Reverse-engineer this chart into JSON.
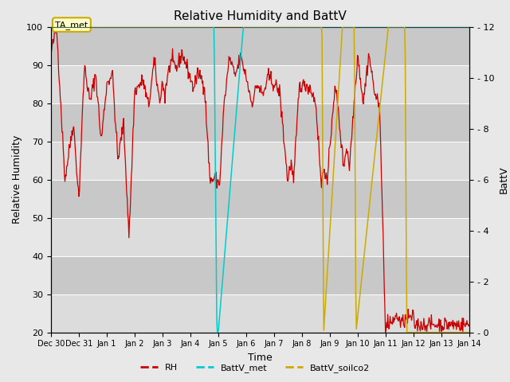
{
  "title": "Relative Humidity and BattV",
  "xlabel": "Time",
  "ylabel_left": "Relative Humidity",
  "ylabel_right": "BattV",
  "ylim_left": [
    20,
    100
  ],
  "ylim_right": [
    0,
    12
  ],
  "fig_bg_color": "#e8e8e8",
  "plot_bg_color": "#d4d4d4",
  "rh_color": "#cc0000",
  "battv_met_color": "#00cccc",
  "battv_soilco2_color": "#ccaa00",
  "annotation_text": "TA_met",
  "annotation_edge_color": "#ccaa00",
  "annotation_bg": "#ffffcc",
  "legend_labels": [
    "RH",
    "BattV_met",
    "BattV_soilco2"
  ],
  "xtick_labels": [
    "Dec 30",
    "Dec 31",
    "Jan 1",
    "Jan 2",
    "Jan 3",
    "Jan 4",
    "Jan 5",
    "Jan 6",
    "Jan 7",
    "Jan 8",
    "Jan 9",
    "Jan 10",
    "Jan 11",
    "Jan 12",
    "Jan 13",
    "Jan 14"
  ],
  "yticks_left": [
    20,
    30,
    40,
    50,
    60,
    70,
    80,
    90,
    100
  ],
  "yticks_right": [
    0,
    2,
    4,
    6,
    8,
    10,
    12
  ],
  "grid_color": "#ffffff",
  "band_color_light": "#dcdcdc",
  "band_color_dark": "#c8c8c8"
}
